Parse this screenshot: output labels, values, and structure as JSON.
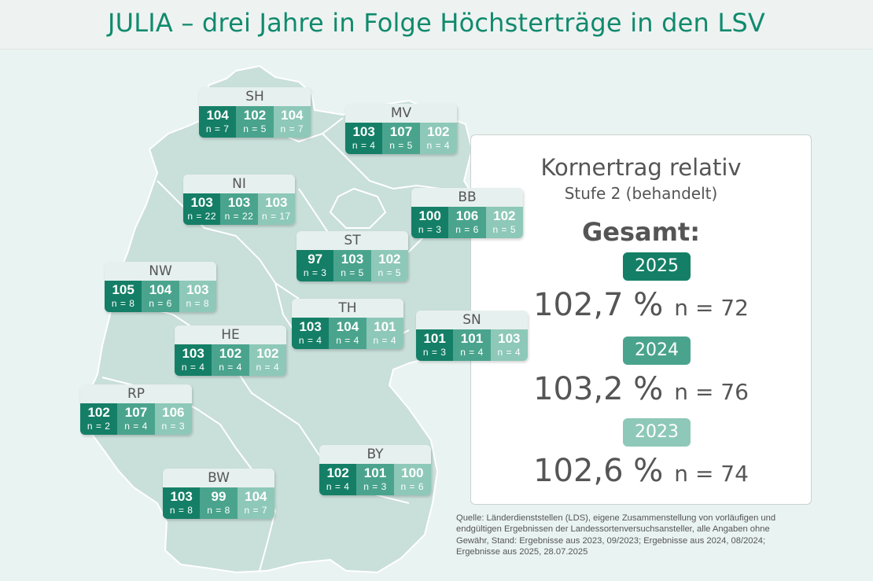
{
  "title": "JULIA – drei Jahre in Folge Höchsterträge in den LSV",
  "info": {
    "heading": "Kornertrag relativ",
    "subheading": "Stufe 2 (behandelt)",
    "total_label": "Gesamt:",
    "years": [
      {
        "year": "2025",
        "value": "102,7 %",
        "n": "n = 72",
        "color": "#147f66"
      },
      {
        "year": "2024",
        "value": "103,2 %",
        "n": "n = 76",
        "color": "#4aa48d"
      },
      {
        "year": "2023",
        "value": "102,6 %",
        "n": "n = 74",
        "color": "#8ec8b8"
      }
    ]
  },
  "states": [
    {
      "code": "SH",
      "values": [
        {
          "v": "104",
          "n": "n = 7"
        },
        {
          "v": "102",
          "n": "n = 5"
        },
        {
          "v": "104",
          "n": "n = 7"
        }
      ]
    },
    {
      "code": "MV",
      "values": [
        {
          "v": "103",
          "n": "n = 4"
        },
        {
          "v": "107",
          "n": "n = 5"
        },
        {
          "v": "102",
          "n": "n = 4"
        }
      ]
    },
    {
      "code": "NI",
      "values": [
        {
          "v": "103",
          "n": "n = 22"
        },
        {
          "v": "103",
          "n": "n = 22"
        },
        {
          "v": "103",
          "n": "n = 17"
        }
      ]
    },
    {
      "code": "BB",
      "values": [
        {
          "v": "100",
          "n": "n = 3"
        },
        {
          "v": "106",
          "n": "n = 6"
        },
        {
          "v": "102",
          "n": "n = 5"
        }
      ]
    },
    {
      "code": "ST",
      "values": [
        {
          "v": "97",
          "n": "n = 3"
        },
        {
          "v": "103",
          "n": "n = 5"
        },
        {
          "v": "102",
          "n": "n = 5"
        }
      ]
    },
    {
      "code": "NW",
      "values": [
        {
          "v": "105",
          "n": "n = 8"
        },
        {
          "v": "104",
          "n": "n = 6"
        },
        {
          "v": "103",
          "n": "n = 8"
        }
      ]
    },
    {
      "code": "TH",
      "values": [
        {
          "v": "103",
          "n": "n = 4"
        },
        {
          "v": "104",
          "n": "n = 4"
        },
        {
          "v": "101",
          "n": "n = 4"
        }
      ]
    },
    {
      "code": "SN",
      "values": [
        {
          "v": "101",
          "n": "n = 3"
        },
        {
          "v": "101",
          "n": "n = 4"
        },
        {
          "v": "103",
          "n": "n = 4"
        }
      ]
    },
    {
      "code": "HE",
      "values": [
        {
          "v": "103",
          "n": "n = 4"
        },
        {
          "v": "102",
          "n": "n = 4"
        },
        {
          "v": "102",
          "n": "n = 4"
        }
      ]
    },
    {
      "code": "RP",
      "values": [
        {
          "v": "102",
          "n": "n = 2"
        },
        {
          "v": "107",
          "n": "n = 4"
        },
        {
          "v": "106",
          "n": "n = 3"
        }
      ]
    },
    {
      "code": "BY",
      "values": [
        {
          "v": "102",
          "n": "n = 4"
        },
        {
          "v": "101",
          "n": "n = 3"
        },
        {
          "v": "100",
          "n": "n = 6"
        }
      ]
    },
    {
      "code": "BW",
      "values": [
        {
          "v": "103",
          "n": "n = 8"
        },
        {
          "v": "99",
          "n": "n = 8"
        },
        {
          "v": "104",
          "n": "n = 7"
        }
      ]
    }
  ],
  "source": "Quelle: Länderdienststellen (LDS), eigene Zusammenstellung von vorläufigen und endgültigen Ergebnissen der Landessortenversuchsansteller, alle Angaben ohne Gewähr, Stand: Ergebnisse aus 2023, 09/2023; Ergebnisse aus 2024, 08/2024; Ergebnisse aus 2025, 28.07.2025"
}
